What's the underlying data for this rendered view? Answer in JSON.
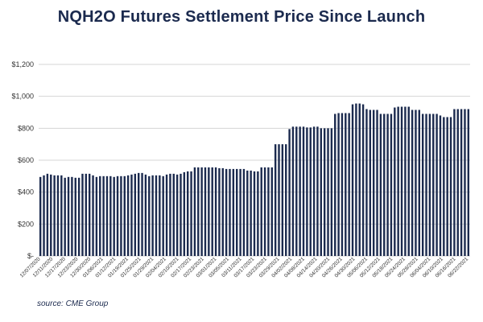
{
  "chart_data": {
    "type": "bar",
    "title": "NQH2O Futures Settlement Price Since Launch",
    "source": "source: CME Group",
    "ylim": [
      0,
      1200
    ],
    "yticks": [
      {
        "value": 0,
        "label": "$-"
      },
      {
        "value": 200,
        "label": "$200"
      },
      {
        "value": 400,
        "label": "$400"
      },
      {
        "value": 600,
        "label": "$600"
      },
      {
        "value": 800,
        "label": "$800"
      },
      {
        "value": 1000,
        "label": "$1,000"
      },
      {
        "value": 1200,
        "label": "$1,200"
      }
    ],
    "grid": true,
    "bar_color": "#1b2a4e",
    "xtick_labels": [
      "12/07/2020",
      "12/11/2020",
      "12/17/2020",
      "12/23/2020",
      "12/30/2020",
      "01/06/2021",
      "01/12/2021",
      "01/19/2021",
      "01/25/2021",
      "01/29/2021",
      "02/04/2021",
      "02/10/2021",
      "02/17/2021",
      "02/23/2021",
      "03/01/2021",
      "03/05/2021",
      "03/11/2021",
      "03/17/2021",
      "03/23/2021",
      "03/29/2021",
      "04/02/2021",
      "04/08/2021",
      "04/14/2021",
      "04/20/2021",
      "04/26/2021",
      "04/30/2021",
      "05/06/2021",
      "05/12/2021",
      "05/18/2021",
      "05/24/2021",
      "05/28/2021",
      "06/04/2021",
      "06/10/2021",
      "06/16/2021",
      "06/22/2021"
    ],
    "values": [
      495,
      505,
      515,
      510,
      505,
      505,
      505,
      490,
      495,
      495,
      490,
      490,
      515,
      515,
      515,
      505,
      495,
      500,
      500,
      500,
      500,
      495,
      500,
      500,
      500,
      505,
      510,
      515,
      520,
      520,
      510,
      500,
      505,
      505,
      505,
      500,
      510,
      515,
      515,
      510,
      515,
      525,
      530,
      530,
      555,
      555,
      555,
      555,
      555,
      555,
      555,
      550,
      550,
      545,
      545,
      545,
      545,
      545,
      545,
      535,
      535,
      530,
      530,
      555,
      555,
      555,
      555,
      700,
      700,
      700,
      700,
      795,
      810,
      810,
      810,
      810,
      805,
      805,
      810,
      810,
      800,
      800,
      800,
      800,
      890,
      895,
      895,
      895,
      895,
      950,
      955,
      955,
      950,
      920,
      915,
      915,
      915,
      890,
      890,
      890,
      890,
      930,
      935,
      935,
      935,
      935,
      915,
      915,
      915,
      890,
      890,
      890,
      890,
      890,
      880,
      870,
      870,
      870,
      920,
      920,
      920,
      920,
      920
    ]
  }
}
